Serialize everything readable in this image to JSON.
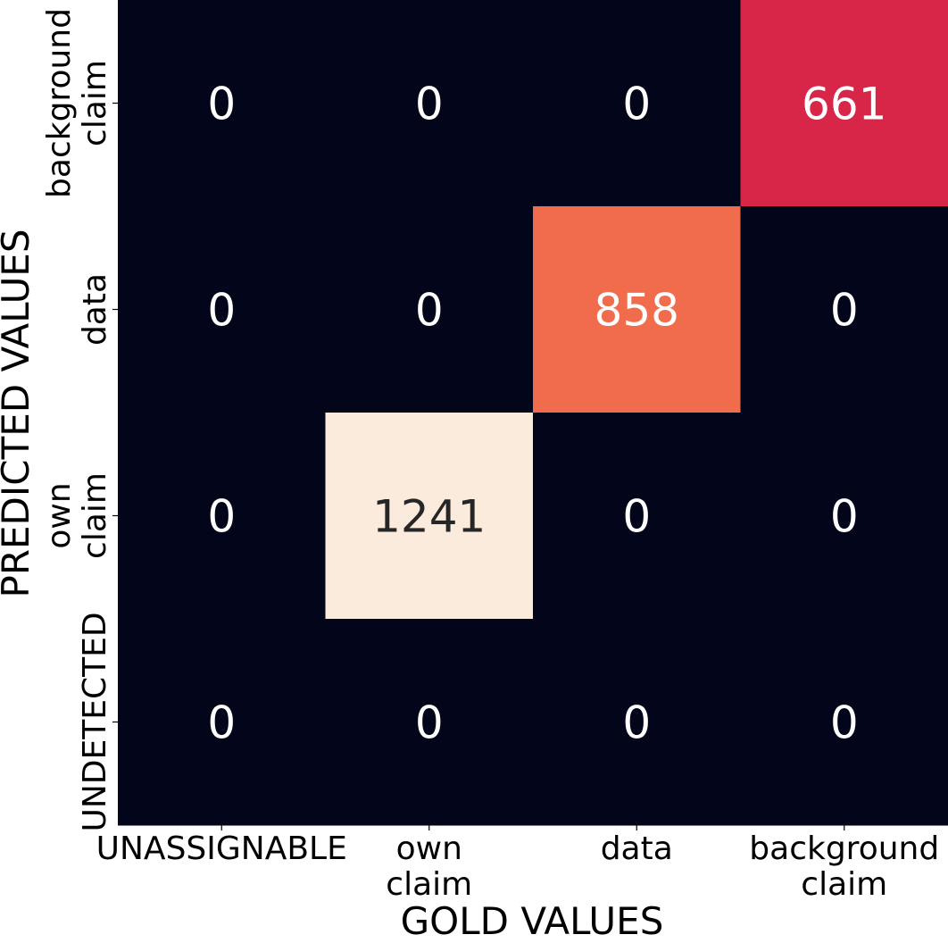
{
  "chart_data": {
    "type": "heatmap",
    "xlabel": "GOLD VALUES",
    "ylabel": "PREDICTED VALUES",
    "x_categories": [
      [
        "UNASSIGNABLE"
      ],
      [
        "own",
        "claim"
      ],
      [
        "data"
      ],
      [
        "background",
        "claim"
      ]
    ],
    "y_categories": [
      [
        "background",
        "claim"
      ],
      [
        "data"
      ],
      [
        "own",
        "claim"
      ],
      [
        "UNDETECTED"
      ]
    ],
    "values": [
      [
        0,
        0,
        0,
        661
      ],
      [
        0,
        0,
        858,
        0
      ],
      [
        0,
        1241,
        0,
        0
      ],
      [
        0,
        0,
        0,
        0
      ]
    ],
    "colorbar": false,
    "colormap": "rocket",
    "colors": {
      "zero": "#03051a",
      "661": "#d72648",
      "858": "#f06c4c",
      "1241": "#faebdd",
      "text_light": "#ffffff",
      "text_dark": "#262626"
    }
  }
}
